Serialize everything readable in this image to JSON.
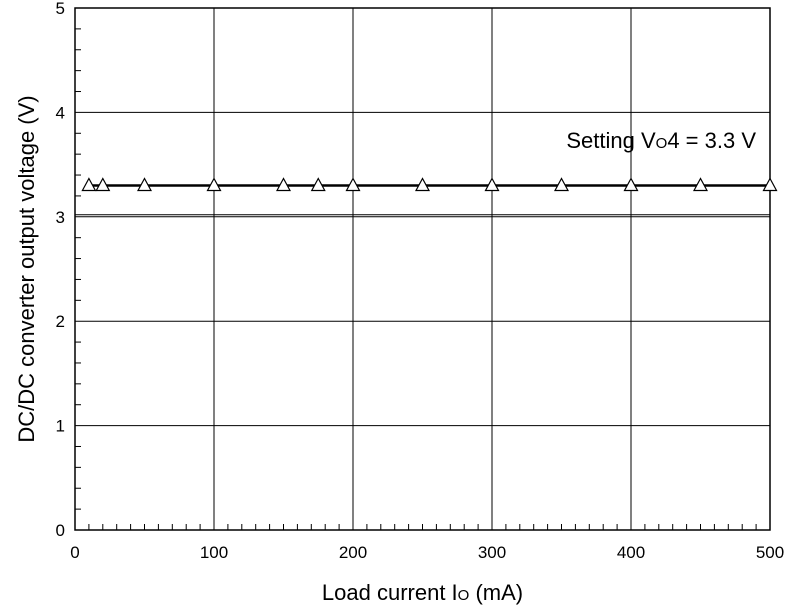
{
  "chart_data": {
    "type": "line",
    "title": "",
    "xlabel": {
      "main": "Load current I",
      "sub": "O",
      "unit": " (mA)"
    },
    "ylabel": "DC/DC converter output voltage (V)",
    "xlim": [
      0,
      500
    ],
    "ylim": [
      0,
      5
    ],
    "xticks": [
      0,
      100,
      200,
      300,
      400,
      500
    ],
    "xticks_labels": [
      "0",
      "100",
      "200",
      "300",
      "400",
      "500"
    ],
    "yticks": [
      0,
      1,
      2,
      3,
      4,
      5
    ],
    "yticks_labels": [
      "0",
      "1",
      "2",
      "3",
      "4",
      "5"
    ],
    "x_minor_step": 10,
    "y_minor_step": 0.2,
    "grid": true,
    "extra_hlines": [
      3.02
    ],
    "annotation": {
      "prefix": "Setting V",
      "sub": "O",
      "suffix": "4 = 3.3 V"
    },
    "series": [
      {
        "marker": "triangle-open",
        "color": "#000000",
        "x": [
          10,
          20,
          50,
          100,
          150,
          175,
          200,
          250,
          300,
          350,
          400,
          450,
          500
        ],
        "y": [
          3.3,
          3.3,
          3.3,
          3.3,
          3.3,
          3.3,
          3.3,
          3.3,
          3.3,
          3.3,
          3.3,
          3.3,
          3.3
        ]
      }
    ]
  }
}
